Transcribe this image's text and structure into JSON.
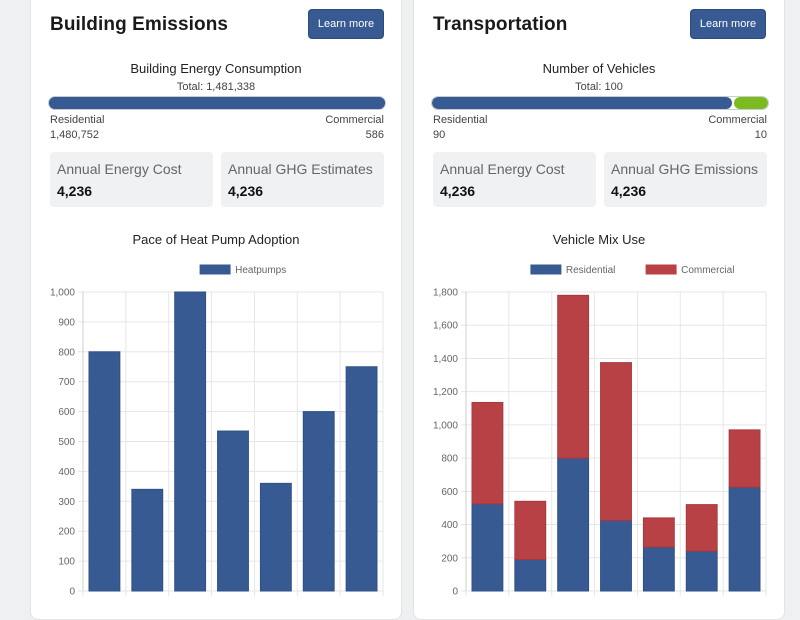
{
  "building": {
    "title": "Building Emissions",
    "learn_more": "Learn more",
    "consumption_title": "Building Energy Consumption",
    "total_label": "Total: 1,481,338",
    "residential_label": "Residential",
    "residential_value": "1,480,752",
    "commercial_label": "Commercial",
    "commercial_value": "586",
    "residential_amount": 1480752,
    "commercial_amount": 586,
    "stats": [
      {
        "label": "Annual Energy Cost",
        "value": "4,236"
      },
      {
        "label": "Annual GHG Estimates",
        "value": "4,236"
      }
    ],
    "chart_title": "Pace of Heat Pump Adoption"
  },
  "transport": {
    "title": "Transportation",
    "learn_more": "Learn more",
    "vehicles_title": "Number of Vehicles",
    "total_label": "Total: 100",
    "residential_label": "Residential",
    "residential_value": "90",
    "commercial_label": "Commercial",
    "commercial_value": "10",
    "residential_amount": 90,
    "commercial_amount": 10,
    "stats": [
      {
        "label": "Annual Energy Cost",
        "value": "4,236"
      },
      {
        "label": "Annual GHG Emissions",
        "value": "4,236"
      }
    ],
    "chart_title": "Vehicle Mix Use"
  },
  "colors": {
    "primary": "#375a92",
    "commercial_bar": "#7cbb1d",
    "commercial_series": "#b84145",
    "stat_bg": "#f0f1f3"
  },
  "chart_data": [
    {
      "type": "bar",
      "title": "Pace of Heat Pump Adoption",
      "legend": [
        "Heatpumps"
      ],
      "legend_position": "top",
      "categories": [
        "",
        "",
        "",
        "",
        "",
        "",
        ""
      ],
      "series": [
        {
          "name": "Heatpumps",
          "values": [
            800,
            340,
            1000,
            535,
            360,
            600,
            750
          ],
          "color": "#375a92"
        }
      ],
      "ylim": [
        0,
        1000
      ],
      "yticks": [
        0,
        100,
        200,
        300,
        400,
        500,
        600,
        700,
        800,
        900,
        1000
      ],
      "ytick_labels": [
        "0",
        "100",
        "200",
        "300",
        "400",
        "500",
        "600",
        "700",
        "800",
        "900",
        "1,000"
      ],
      "grid": true,
      "xlabel": "",
      "ylabel": ""
    },
    {
      "type": "bar",
      "stacked": true,
      "title": "Vehicle Mix Use",
      "legend": [
        "Residential",
        "Commercial"
      ],
      "legend_position": "top",
      "categories": [
        "",
        "",
        "",
        "",
        "",
        "",
        ""
      ],
      "series": [
        {
          "name": "Residential",
          "values": [
            525,
            190,
            800,
            425,
            265,
            240,
            625
          ],
          "color": "#375a92"
        },
        {
          "name": "Commercial",
          "values": [
            610,
            350,
            980,
            950,
            175,
            280,
            345
          ],
          "color": "#b84145"
        }
      ],
      "ylim": [
        0,
        1800
      ],
      "yticks": [
        0,
        200,
        400,
        600,
        800,
        1000,
        1200,
        1400,
        1600,
        1800
      ],
      "ytick_labels": [
        "0",
        "200",
        "400",
        "600",
        "800",
        "1,000",
        "1,200",
        "1,400",
        "1,600",
        "1,800"
      ],
      "grid": true,
      "xlabel": "",
      "ylabel": ""
    }
  ]
}
